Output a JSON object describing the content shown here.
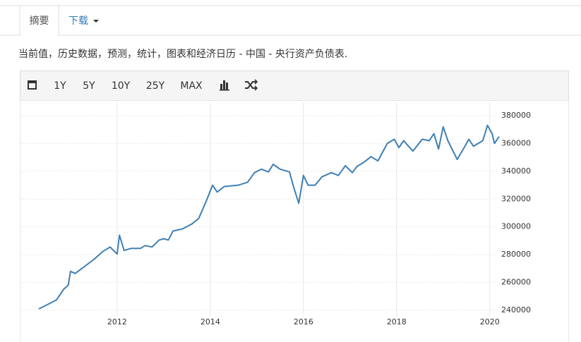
{
  "tabs": [
    "摘要",
    "下载"
  ],
  "description": "当前值，历史数据，预测，统计，图表和经济日历 - 中国 - 央行资产负债表.",
  "toolbar": [
    "1Y",
    "5Y",
    "10Y",
    "25Y",
    "MAX"
  ],
  "chart_data": {
    "type": "line",
    "x": [
      2010.32,
      2010.5,
      2010.7,
      2010.85,
      2010.95,
      2011.0,
      2011.1,
      2011.3,
      2011.5,
      2011.7,
      2011.85,
      2012.0,
      2012.05,
      2012.15,
      2012.3,
      2012.5,
      2012.6,
      2012.75,
      2012.9,
      2013.0,
      2013.1,
      2013.2,
      2013.4,
      2013.6,
      2013.75,
      2013.9,
      2014.05,
      2014.15,
      2014.3,
      2014.6,
      2014.8,
      2014.95,
      2015.1,
      2015.25,
      2015.35,
      2015.5,
      2015.7,
      2015.8,
      2015.9,
      2016.0,
      2016.1,
      2016.25,
      2016.4,
      2016.6,
      2016.75,
      2016.9,
      2017.05,
      2017.15,
      2017.3,
      2017.45,
      2017.6,
      2017.8,
      2017.95,
      2018.05,
      2018.15,
      2018.35,
      2018.55,
      2018.7,
      2018.8,
      2018.9,
      2019.0,
      2019.1,
      2019.3,
      2019.45,
      2019.55,
      2019.65,
      2019.85,
      2019.95,
      2020.05,
      2020.1,
      2020.2
    ],
    "values": [
      241000,
      244000,
      247500,
      255000,
      258000,
      268000,
      266500,
      271500,
      276500,
      282500,
      285500,
      280500,
      294000,
      283000,
      284500,
      284500,
      286500,
      285500,
      290500,
      291500,
      290500,
      297000,
      298500,
      302000,
      306000,
      317500,
      330000,
      325000,
      329000,
      330000,
      332000,
      339000,
      341500,
      339500,
      345000,
      341500,
      339500,
      327500,
      317000,
      337000,
      330000,
      330000,
      336000,
      339000,
      337000,
      344000,
      339000,
      343500,
      346500,
      350500,
      347500,
      360000,
      363000,
      357000,
      362000,
      354500,
      363000,
      362000,
      367000,
      356000,
      372000,
      362000,
      348500,
      357000,
      363000,
      358000,
      362000,
      373000,
      367000,
      360000,
      365000
    ],
    "color": "#3f7fb3",
    "xlim": [
      2010.32,
      2020.2
    ],
    "xticks": [
      2012,
      2014,
      2016,
      2018,
      2020
    ],
    "ylim": [
      240000,
      380000
    ],
    "yticks": [
      240000,
      260000,
      280000,
      300000,
      320000,
      340000,
      360000,
      380000
    ],
    "grid": true
  }
}
